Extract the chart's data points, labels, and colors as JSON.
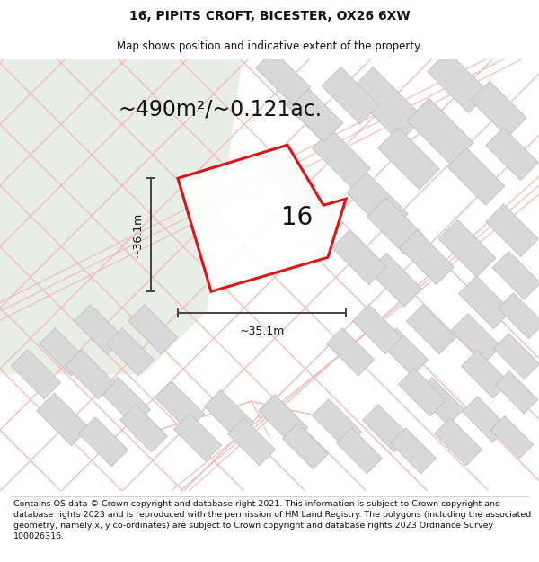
{
  "title": "16, PIPITS CROFT, BICESTER, OX26 6XW",
  "subtitle": "Map shows position and indicative extent of the property.",
  "area_label": "~490m²/~0.121ac.",
  "property_number": "16",
  "width_label": "~35.1m",
  "height_label": "~36.1m",
  "footer": "Contains OS data © Crown copyright and database right 2021. This information is subject to Crown copyright and database rights 2023 and is reproduced with the permission of HM Land Registry. The polygons (including the associated geometry, namely x, y co-ordinates) are subject to Crown copyright and database rights 2023 Ordnance Survey 100026316.",
  "map_bg": "#f8f8f8",
  "green_color": "#e8ede5",
  "plot_color": "#dd0000",
  "building_fill": "#d8d8d8",
  "building_edge": "#c0c0c0",
  "road_color": "#f2b8b8",
  "dim_color": "#444444",
  "title_fontsize": 10,
  "subtitle_fontsize": 8.5,
  "area_fontsize": 17,
  "number_fontsize": 20,
  "dim_fontsize": 9,
  "footer_fontsize": 6.8
}
